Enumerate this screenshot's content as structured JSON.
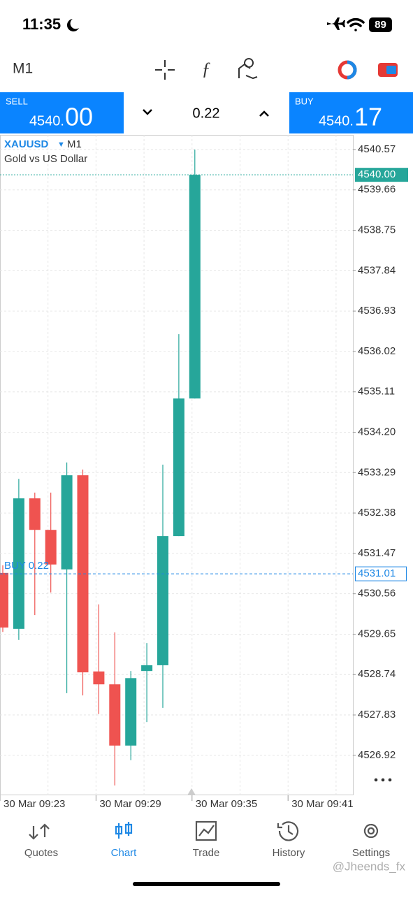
{
  "status": {
    "time": "11:35",
    "battery": "89"
  },
  "toolbar": {
    "timeframe": "M1"
  },
  "trade_panel": {
    "sell_label": "SELL",
    "sell_price_main": "4540.",
    "sell_price_big": "00",
    "volume": "0.22",
    "buy_label": "BUY",
    "buy_price_main": "4540.",
    "buy_price_big": "17"
  },
  "chart_data": {
    "type": "candlestick",
    "symbol": "XAUUSD",
    "timeframe": "M1",
    "description": "Gold vs US Dollar",
    "up_color": "#26a69a",
    "down_color": "#ef5350",
    "grid": true,
    "ylim": [
      4526.02,
      4540.9
    ],
    "yticks": [
      4540.57,
      4539.66,
      4538.75,
      4537.84,
      4536.93,
      4536.02,
      4535.11,
      {
        "value": 4534.2,
        "label": "4534.20"
      },
      4533.29,
      4532.38,
      4531.47,
      4530.56,
      4529.65,
      4528.74,
      4527.83,
      4526.92
    ],
    "current_price": {
      "value": 4540,
      "label": "4540.00"
    },
    "position": {
      "label": "BUY 0.22",
      "price": 4531.01
    },
    "xtick_labels": [
      "30 Mar 09:23",
      "30 Mar 09:29",
      "30 Mar 09:35",
      "30 Mar 09:41"
    ],
    "candles": [
      {
        "open": 4531.03,
        "high": 4531.2,
        "low": 4529.7,
        "close": 4529.8
      },
      {
        "open": 4529.77,
        "high": 4533.15,
        "low": 4529.52,
        "close": 4532.71
      },
      {
        "open": 4532.71,
        "high": 4532.84,
        "low": 4530.08,
        "close": 4532.0
      },
      {
        "open": 4532.0,
        "high": 4532.84,
        "low": 4530.59,
        "close": 4531.22
      },
      {
        "open": 4531.11,
        "high": 4533.52,
        "low": 4528.32,
        "close": 4533.23
      },
      {
        "open": 4533.23,
        "high": 4533.36,
        "low": 4528.27,
        "close": 4528.79
      },
      {
        "open": 4528.81,
        "high": 4530.32,
        "low": 4527.85,
        "close": 4528.52
      },
      {
        "open": 4528.52,
        "high": 4529.69,
        "low": 4526.24,
        "close": 4527.14
      },
      {
        "open": 4527.14,
        "high": 4528.82,
        "low": 4526.81,
        "close": 4528.66
      },
      {
        "open": 4528.82,
        "high": 4529.45,
        "low": 4527.67,
        "close": 4528.95
      },
      {
        "open": 4528.95,
        "high": 4533.47,
        "low": 4527.99,
        "close": 4531.86
      },
      {
        "open": 4531.86,
        "high": 4536.41,
        "low": 4531.86,
        "close": 4534.96
      },
      {
        "open": 4534.96,
        "high": 4540.57,
        "low": 4534.96,
        "close": 4540.0
      }
    ]
  },
  "nav": {
    "items": [
      "Quotes",
      "Chart",
      "Trade",
      "History",
      "Settings"
    ],
    "active": 1
  },
  "watermark": "@Jheends_fx"
}
